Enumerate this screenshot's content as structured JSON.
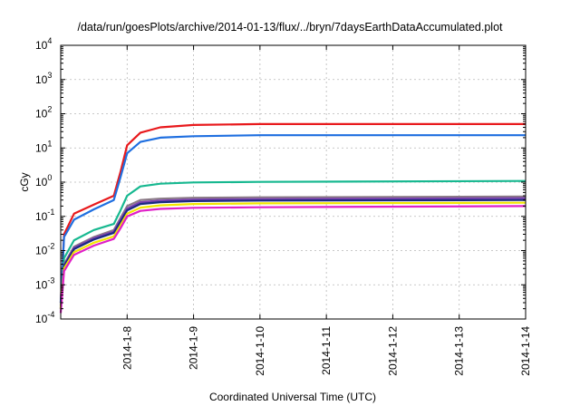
{
  "chart_data": {
    "type": "line",
    "title": "/data/run/goesPlots/archive/2014-01-13/flux/../bryn/7daysEarthDataAccumulated.plot",
    "xlabel": "Coordinated Universal Time (UTC)",
    "ylabel": "cGy",
    "x_tick_labels": [
      "2014-1-8",
      "2014-1-9",
      "2014-1-10",
      "2014-1-11",
      "2014-1-12",
      "2014-1-13",
      "2014-1-14"
    ],
    "xlim": [
      7.0,
      14.0
    ],
    "y_scale": "log",
    "ylim": [
      0.0001,
      10000
    ],
    "y_tick_labels": [
      {
        "base": "10",
        "exp": "-4"
      },
      {
        "base": "10",
        "exp": "-3"
      },
      {
        "base": "10",
        "exp": "-2"
      },
      {
        "base": "10",
        "exp": "-1"
      },
      {
        "base": "10",
        "exp": "0"
      },
      {
        "base": "10",
        "exp": "1"
      },
      {
        "base": "10",
        "exp": "2"
      },
      {
        "base": "10",
        "exp": "3"
      },
      {
        "base": "10",
        "exp": "4"
      }
    ],
    "grid": true,
    "series": [
      {
        "color": "#e8191c",
        "x": [
          7.0,
          7.05,
          7.2,
          7.5,
          7.8,
          7.9,
          8.0,
          8.2,
          8.5,
          9.0,
          10.0,
          14.0
        ],
        "y": [
          0.0003,
          0.03,
          0.12,
          0.22,
          0.4,
          2.0,
          12.0,
          28.0,
          40.0,
          47.0,
          50.0,
          50.0
        ]
      },
      {
        "color": "#1f6fe0",
        "x": [
          7.0,
          7.05,
          7.2,
          7.5,
          7.8,
          7.9,
          8.0,
          8.2,
          8.5,
          9.0,
          10.0,
          14.0
        ],
        "y": [
          0.0003,
          0.025,
          0.08,
          0.16,
          0.3,
          1.4,
          7.0,
          15.0,
          20.0,
          22.0,
          23.5,
          23.5
        ]
      },
      {
        "color": "#17b890",
        "x": [
          7.0,
          7.05,
          7.2,
          7.5,
          7.8,
          7.9,
          8.0,
          8.2,
          8.5,
          9.0,
          10.0,
          14.0
        ],
        "y": [
          0.0002,
          0.006,
          0.02,
          0.04,
          0.06,
          0.15,
          0.4,
          0.75,
          0.9,
          0.98,
          1.02,
          1.08
        ]
      },
      {
        "color": "#8a7a86",
        "x": [
          7.0,
          7.05,
          7.2,
          7.5,
          7.8,
          7.9,
          8.0,
          8.2,
          8.5,
          9.0,
          10.0,
          14.0
        ],
        "y": [
          0.0002,
          0.004,
          0.013,
          0.025,
          0.04,
          0.09,
          0.2,
          0.3,
          0.33,
          0.35,
          0.36,
          0.38
        ]
      },
      {
        "color": "#7a3fb0",
        "x": [
          7.0,
          7.05,
          7.2,
          7.5,
          7.8,
          7.9,
          8.0,
          8.2,
          8.5,
          9.0,
          10.0,
          14.0
        ],
        "y": [
          0.0002,
          0.0038,
          0.012,
          0.023,
          0.036,
          0.08,
          0.17,
          0.26,
          0.29,
          0.31,
          0.32,
          0.34
        ]
      },
      {
        "color": "#1a2a80",
        "x": [
          7.0,
          7.05,
          7.2,
          7.5,
          7.8,
          7.9,
          8.0,
          8.2,
          8.5,
          9.0,
          10.0,
          14.0
        ],
        "y": [
          0.0002,
          0.0035,
          0.011,
          0.021,
          0.033,
          0.07,
          0.15,
          0.23,
          0.26,
          0.28,
          0.29,
          0.3
        ]
      },
      {
        "color": "#f2e600",
        "x": [
          7.0,
          7.05,
          7.2,
          7.5,
          7.8,
          7.9,
          8.0,
          8.2,
          8.5,
          9.0,
          10.0,
          14.0
        ],
        "y": [
          0.0002,
          0.003,
          0.009,
          0.017,
          0.026,
          0.055,
          0.12,
          0.18,
          0.21,
          0.23,
          0.24,
          0.25
        ]
      },
      {
        "color": "#e01fc8",
        "x": [
          7.0,
          7.05,
          7.2,
          7.5,
          7.8,
          7.9,
          8.0,
          8.2,
          8.5,
          9.0,
          10.0,
          14.0
        ],
        "y": [
          0.00015,
          0.0025,
          0.0075,
          0.014,
          0.022,
          0.045,
          0.1,
          0.145,
          0.165,
          0.178,
          0.185,
          0.2
        ]
      }
    ]
  }
}
